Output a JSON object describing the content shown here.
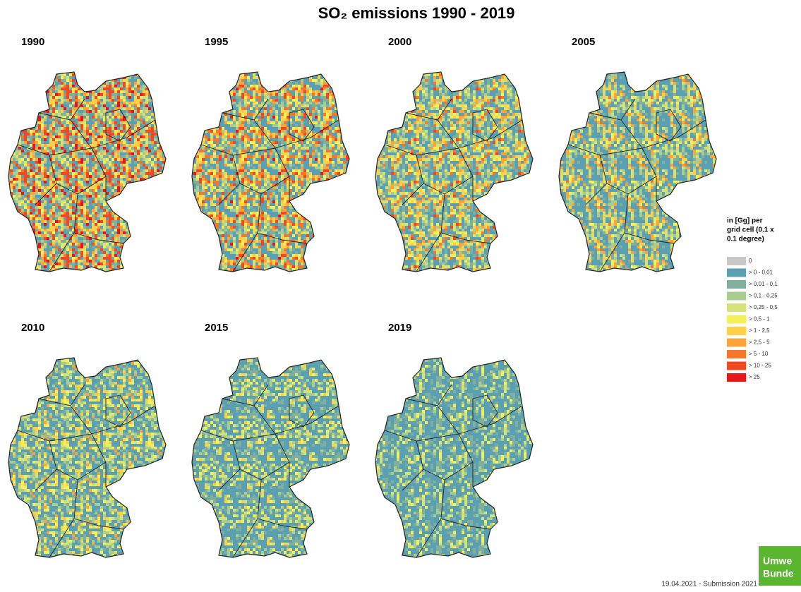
{
  "header": {
    "title": "SO₂ emissions 1990 - 2019"
  },
  "maps": [
    {
      "year": "1990"
    },
    {
      "year": "1995"
    },
    {
      "year": "2000"
    },
    {
      "year": "2005"
    },
    {
      "year": "2010"
    },
    {
      "year": "2015"
    },
    {
      "year": "2019"
    }
  ],
  "legend": {
    "title": [
      "in [Gg] per",
      "grid cell (0.1 x",
      "0.1 degree)"
    ],
    "items": [
      {
        "label": "0",
        "color": "#c8c8c8"
      },
      {
        "label": "> 0    - 0,01",
        "color": "#5b9fb3"
      },
      {
        "label": "> 0,01 - 0,1",
        "color": "#80b09c"
      },
      {
        "label": "> 0,1   - 0,25",
        "color": "#a9cc8f"
      },
      {
        "label": "> 0,25 - 0,5",
        "color": "#d4e27a"
      },
      {
        "label": "> 0,5   - 1",
        "color": "#f5f05a"
      },
      {
        "label": "> 1     - 2,5",
        "color": "#fdd047"
      },
      {
        "label": "> 2,5  - 5",
        "color": "#fca43a"
      },
      {
        "label": "> 5     - 10",
        "color": "#f7772a"
      },
      {
        "label": "> 10   - 25",
        "color": "#f04823"
      },
      {
        "label": "> 25",
        "color": "#e8161b"
      }
    ]
  },
  "footer": {
    "text": "19.04.2021 - Submission 2021",
    "logo": [
      "Umwe",
      "Bunde"
    ]
  }
}
